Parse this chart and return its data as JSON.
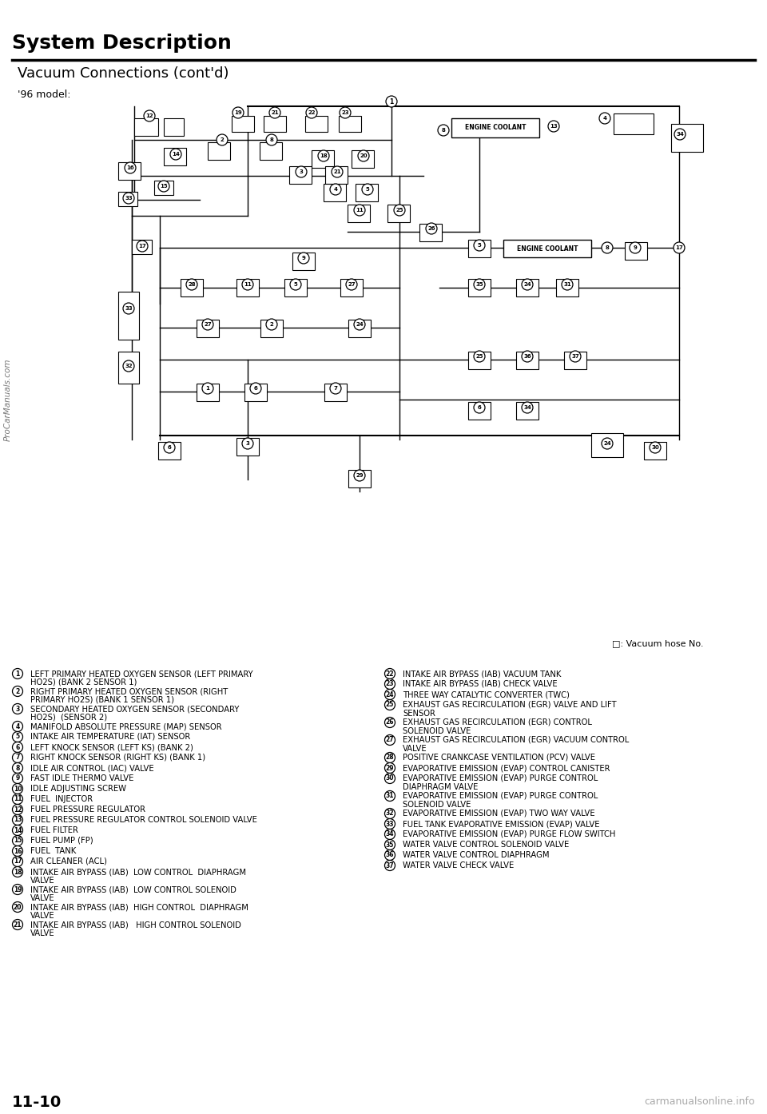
{
  "title": "System Description",
  "subtitle": "Vacuum Connections (cont'd)",
  "model_label": "'96 model:",
  "page_number": "11-10",
  "watermark": "carmanualsonline.info",
  "left_watermark": "ProCarManuals.com",
  "legend_note": "□: Vacuum hose No.",
  "left_items": [
    {
      "num": "1",
      "text": "LEFT PRIMARY HEATED OXYGEN SENSOR (LEFT PRIMARY\nHO2S) (BANK 2 SENSOR 1)"
    },
    {
      "num": "2",
      "text": "RIGHT PRIMARY HEATED OXYGEN SENSOR (RIGHT\nPRIMARY HO2S) (BANK 1 SENSOR 1)"
    },
    {
      "num": "3",
      "text": "SECONDARY HEATED OXYGEN SENSOR (SECONDARY\nHO2S)  (SENSOR 2)"
    },
    {
      "num": "4",
      "text": "MANIFOLD ABSOLUTE PRESSURE (MAP) SENSOR"
    },
    {
      "num": "5",
      "text": "INTAKE AIR TEMPERATURE (IAT) SENSOR"
    },
    {
      "num": "6",
      "text": "LEFT KNOCK SENSOR (LEFT KS) (BANK 2)"
    },
    {
      "num": "7",
      "text": "RIGHT KNOCK SENSOR (RIGHT KS) (BANK 1)"
    },
    {
      "num": "8",
      "text": "IDLE AIR CONTROL (IAC) VALVE"
    },
    {
      "num": "9",
      "text": "FAST IDLE THERMO VALVE"
    },
    {
      "num": "10",
      "text": "IDLE ADJUSTING SCREW"
    },
    {
      "num": "11",
      "text": "FUEL  INJECTOR"
    },
    {
      "num": "12",
      "text": "FUEL PRESSURE REGULATOR"
    },
    {
      "num": "13",
      "text": "FUEL PRESSURE REGULATOR CONTROL SOLENOID VALVE"
    },
    {
      "num": "14",
      "text": "FUEL FILTER"
    },
    {
      "num": "15",
      "text": "FUEL PUMP (FP)"
    },
    {
      "num": "16",
      "text": "FUEL  TANK"
    },
    {
      "num": "17",
      "text": "AIR CLEANER (ACL)"
    },
    {
      "num": "18",
      "text": "INTAKE AIR BYPASS (IAB)  LOW CONTROL  DIAPHRAGM\nVALVE"
    },
    {
      "num": "19",
      "text": "INTAKE AIR BYPASS (IAB)  LOW CONTROL SOLENOID\nVALVE"
    },
    {
      "num": "20",
      "text": "INTAKE AIR BYPASS (IAB)  HIGH CONTROL  DIAPHRAGM\nVALVE"
    },
    {
      "num": "21",
      "text": "INTAKE AIR BYPASS (IAB)   HIGH CONTROL SOLENOID\nVALVE"
    }
  ],
  "right_items": [
    {
      "num": "22",
      "text": "INTAKE AIR BYPASS (IAB) VACUUM TANK"
    },
    {
      "num": "23",
      "text": "INTAKE AIR BYPASS (IAB) CHECK VALVE"
    },
    {
      "num": "24",
      "text": "THREE WAY CATALYTIC CONVERTER (TWC)"
    },
    {
      "num": "25",
      "text": "EXHAUST GAS RECIRCULATION (EGR) VALVE AND LIFT\nSENSOR"
    },
    {
      "num": "26",
      "text": "EXHAUST GAS RECIRCULATION (EGR) CONTROL\nSOLENOID VALVE"
    },
    {
      "num": "27",
      "text": "EXHAUST GAS RECIRCULATION (EGR) VACUUM CONTROL\nVALVE"
    },
    {
      "num": "28",
      "text": "POSITIVE CRANKCASE VENTILATION (PCV) VALVE"
    },
    {
      "num": "29",
      "text": "EVAPORATIVE EMISSION (EVAP) CONTROL CANISTER"
    },
    {
      "num": "30",
      "text": "EVAPORATIVE EMISSION (EVAP) PURGE CONTROL\nDIAPHRAGM VALVE"
    },
    {
      "num": "31",
      "text": "EVAPORATIVE EMISSION (EVAP) PURGE CONTROL\nSOLENOID VALVE"
    },
    {
      "num": "32",
      "text": "EVAPORATIVE EMISSION (EVAP) TWO WAY VALVE"
    },
    {
      "num": "33",
      "text": "FUEL TANK EVAPORATIVE EMISSION (EVAP) VALVE"
    },
    {
      "num": "34",
      "text": "EVAPORATIVE EMISSION (EVAP) PURGE FLOW SWITCH"
    },
    {
      "num": "35",
      "text": "WATER VALVE CONTROL SOLENOID VALVE"
    },
    {
      "num": "36",
      "text": "WATER VALVE CONTROL DIAPHRAGM"
    },
    {
      "num": "37",
      "text": "WATER VALVE CHECK VALVE"
    }
  ],
  "bg_color": "#ffffff",
  "text_color": "#000000",
  "title_fontsize": 18,
  "subtitle_fontsize": 13,
  "item_fontsize": 7.2
}
